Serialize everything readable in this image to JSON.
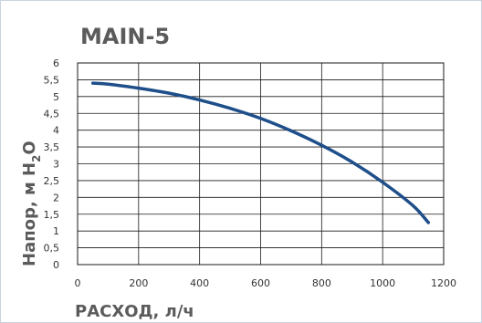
{
  "chart_data": {
    "type": "line",
    "title": "MAIN-5",
    "xlabel": "РАСХОД, л/ч",
    "ylabel_parts": {
      "before": "Напор, м H",
      "subscript": "2",
      "after": "O"
    },
    "xlim": [
      0,
      1200
    ],
    "ylim": [
      0,
      6
    ],
    "x_ticks": [
      "0",
      "200",
      "400",
      "600",
      "800",
      "1000",
      "1200"
    ],
    "y_ticks": [
      "0",
      "0,5",
      "1",
      "1,5",
      "2",
      "2,5",
      "3",
      "3,5",
      "4",
      "4,5",
      "5",
      "5,5",
      "6"
    ],
    "grid": true,
    "line_color": "#1f4f8a",
    "grid_color": "#1a1a1a",
    "series": [
      {
        "x": [
          50,
          100,
          200,
          300,
          400,
          500,
          600,
          700,
          800,
          900,
          1000,
          1100,
          1150
        ],
        "y": [
          5.4,
          5.37,
          5.25,
          5.1,
          4.9,
          4.65,
          4.35,
          3.98,
          3.55,
          3.05,
          2.45,
          1.75,
          1.25
        ]
      }
    ]
  }
}
